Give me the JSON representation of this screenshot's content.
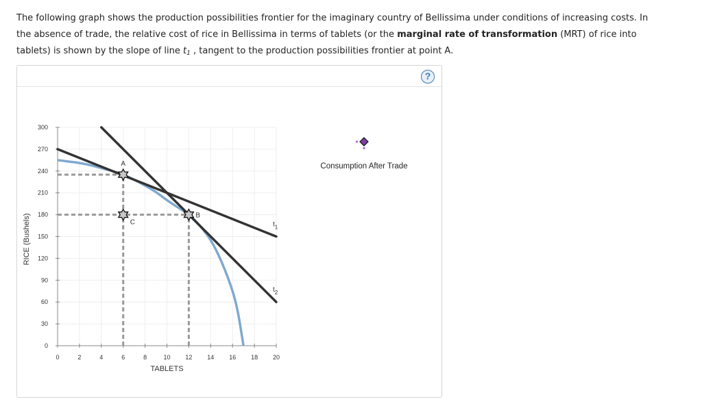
{
  "intro": {
    "part1": "The following graph shows the production possibilities frontier for the imaginary country of Bellissima under conditions of increasing costs. In the absence of trade, the relative cost of rice in Bellissima in terms of tablets (or the ",
    "bold": "marginal rate of transformation",
    "part2": " (MRT) of rice into tablets) is shown by the slope of line ",
    "t_base": "t",
    "t_sub": "1",
    "part3": " , tangent to the production possibilities frontier at point A."
  },
  "panel": {
    "help_label": "?"
  },
  "legend": {
    "label": "Consumption After Trade",
    "marker_color": "#7b3fa0"
  },
  "colors": {
    "ppf": "#7fa9cf",
    "lines": "#333333",
    "dashed": "#999999",
    "star_fill": "#c8c8c8"
  },
  "chart_data": {
    "type": "line",
    "xlabel": "TABLETS",
    "ylabel": "RICE (Bushels)",
    "xlim": [
      0,
      20
    ],
    "ylim": [
      0,
      300
    ],
    "x_ticks": [
      0,
      2,
      4,
      6,
      8,
      10,
      12,
      14,
      16,
      18,
      20
    ],
    "y_ticks": [
      0,
      30,
      60,
      90,
      120,
      150,
      180,
      210,
      240,
      270,
      300
    ],
    "grid": true,
    "ppf": {
      "x": [
        0,
        1,
        2,
        3,
        4,
        5,
        6,
        7,
        8,
        9,
        10,
        11,
        12,
        13,
        14,
        15,
        16,
        16.5,
        17
      ],
      "y": [
        255,
        253,
        251,
        248,
        244,
        240,
        235,
        228,
        220,
        211,
        200,
        190,
        180,
        165,
        145,
        115,
        75,
        45,
        0
      ]
    },
    "lines": [
      {
        "name": "t1",
        "label_base": "t",
        "label_sub": "1",
        "x": [
          0,
          20
        ],
        "y": [
          270,
          150
        ]
      },
      {
        "name": "t2",
        "label_base": "t",
        "label_sub": "2",
        "x": [
          4,
          20
        ],
        "y": [
          300,
          60
        ]
      }
    ],
    "points": [
      {
        "label": "A",
        "x": 6,
        "y": 235
      },
      {
        "label": "C",
        "x": 6,
        "y": 180
      },
      {
        "label": "B",
        "x": 12,
        "y": 180
      }
    ],
    "dashed_guides": [
      {
        "from": [
          0,
          235
        ],
        "to": [
          6,
          235
        ]
      },
      {
        "from": [
          0,
          180
        ],
        "to": [
          12,
          180
        ]
      },
      {
        "from": [
          6,
          0
        ],
        "to": [
          6,
          235
        ]
      },
      {
        "from": [
          12,
          0
        ],
        "to": [
          12,
          180
        ]
      }
    ]
  }
}
